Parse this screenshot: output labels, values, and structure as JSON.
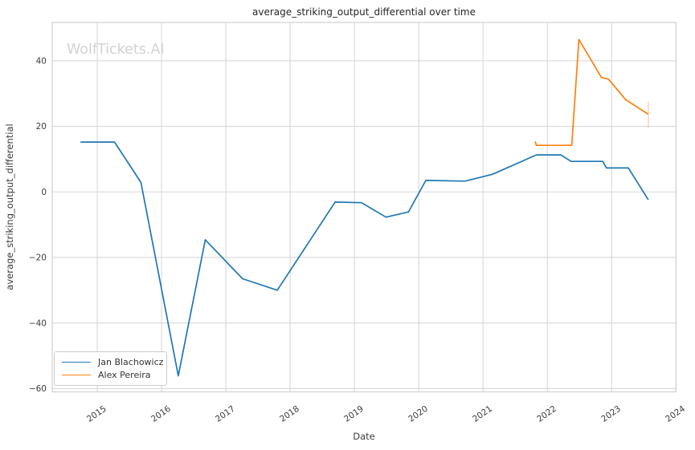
{
  "watermark": "WolfTickets.AI",
  "colors": {
    "series_blue": "#1f77b4",
    "series_orange": "#ff7f0e",
    "grid": "#d8d8d8",
    "spine": "#d4d4d4",
    "tick_text": "#3b3b3b",
    "title_text": "#262626",
    "watermark_text": "#d2d2d2"
  },
  "chart_data": {
    "type": "line",
    "title": "average_striking_output_differential over time",
    "xlabel": "Date",
    "ylabel": "average_striking_output_differential",
    "grid": true,
    "legend_position": "lower left",
    "xlim": [
      2014.3,
      2024.0
    ],
    "ylim": [
      -61.0,
      51.7
    ],
    "x_ticks": [
      2015,
      2016,
      2017,
      2018,
      2019,
      2020,
      2021,
      2022,
      2023,
      2024
    ],
    "y_ticks": [
      -60,
      -40,
      -20,
      0,
      20,
      40
    ],
    "series": [
      {
        "name": "Jan Blachowicz",
        "color": "#1f77b4",
        "x": [
          2014.74,
          2015.27,
          2015.68,
          2016.26,
          2016.68,
          2017.26,
          2017.8,
          2018.7,
          2019.11,
          2019.49,
          2019.84,
          2020.11,
          2020.72,
          2021.15,
          2021.83,
          2022.21,
          2022.37,
          2022.86,
          2022.92,
          2023.26,
          2023.57
        ],
        "y": [
          15.2,
          15.2,
          2.9,
          -56.1,
          -14.6,
          -26.5,
          -30.0,
          -3.1,
          -3.3,
          -7.7,
          -6.1,
          3.5,
          3.3,
          5.4,
          11.3,
          11.3,
          9.3,
          9.3,
          7.3,
          7.3,
          -2.4
        ]
      },
      {
        "name": "Alex Pereira",
        "color": "#ff7f0e",
        "x": [
          2021.81,
          2021.83,
          2022.38,
          2022.49,
          2022.84,
          2022.95,
          2023.22,
          2023.57
        ],
        "y": [
          15.4,
          14.2,
          14.2,
          46.5,
          34.9,
          34.4,
          28.1,
          23.7
        ],
        "errorbar": {
          "x": 2023.57,
          "low": 19.6,
          "high": 27.5,
          "opacity": 0.32
        }
      }
    ]
  }
}
